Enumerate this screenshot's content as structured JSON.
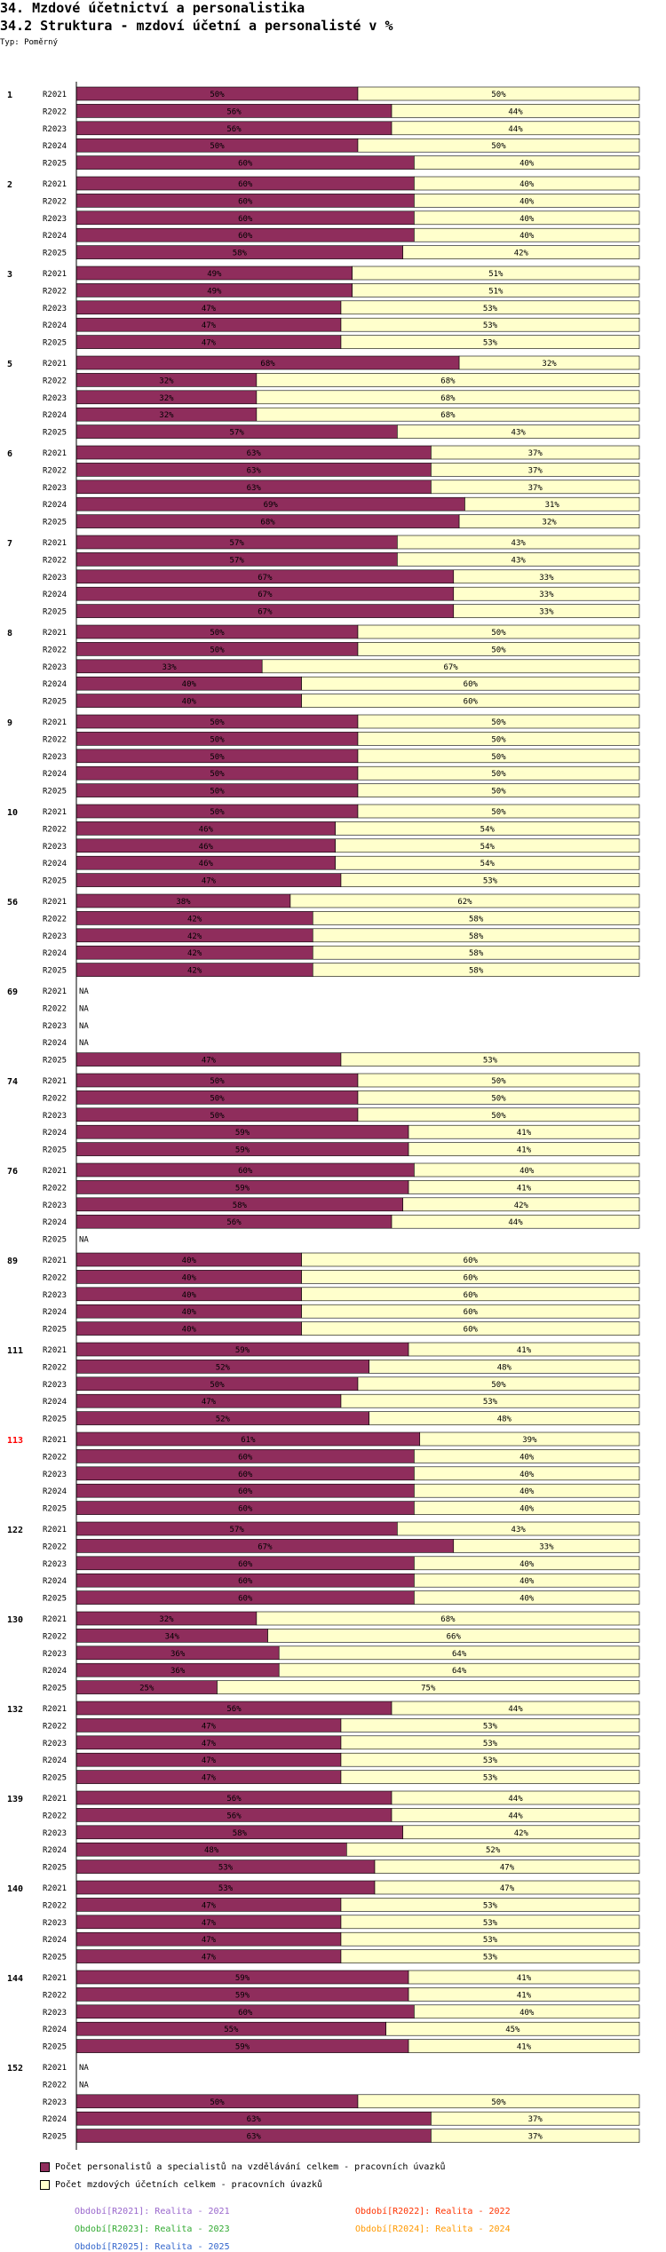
{
  "page": {
    "title": "34. Mzdové účetnictví a personalistika",
    "subtitle": "34.2 Struktura - mzdoví účetní a personalisté v %",
    "type_label": "Typ: Poměrný"
  },
  "colors": {
    "series1": "#8f2d5c",
    "series2": "#ffffcc",
    "highlight_group": "#ff0000"
  },
  "chart_data": {
    "type": "bar",
    "orientation": "horizontal",
    "stacked": true,
    "percent": true,
    "xlim": [
      0,
      100
    ],
    "highlight_group": "113",
    "period_labels": [
      "R2021",
      "R2022",
      "R2023",
      "R2024",
      "R2025"
    ],
    "series": [
      {
        "name": "Počet personalistů a specialistů na vzdělávání celkem - pracovních úvazků",
        "color": "#8f2d5c"
      },
      {
        "name": "Počet mzdových účetních celkem - pracovních úvazků",
        "color": "#ffffcc"
      }
    ],
    "groups": [
      {
        "label": "1",
        "values": [
          50,
          56,
          56,
          50,
          60
        ]
      },
      {
        "label": "2",
        "values": [
          60,
          60,
          60,
          60,
          58
        ]
      },
      {
        "label": "3",
        "values": [
          49,
          49,
          47,
          47,
          47
        ]
      },
      {
        "label": "5",
        "values": [
          68,
          32,
          32,
          32,
          57
        ]
      },
      {
        "label": "6",
        "values": [
          63,
          63,
          63,
          69,
          68
        ]
      },
      {
        "label": "7",
        "values": [
          57,
          57,
          67,
          67,
          67
        ]
      },
      {
        "label": "8",
        "values": [
          50,
          50,
          33,
          40,
          40
        ]
      },
      {
        "label": "9",
        "values": [
          50,
          50,
          50,
          50,
          50
        ]
      },
      {
        "label": "10",
        "values": [
          50,
          46,
          46,
          46,
          47
        ]
      },
      {
        "label": "56",
        "values": [
          38,
          42,
          42,
          42,
          42
        ]
      },
      {
        "label": "69",
        "values": [
          null,
          null,
          null,
          null,
          47
        ]
      },
      {
        "label": "74",
        "values": [
          50,
          50,
          50,
          59,
          59
        ]
      },
      {
        "label": "76",
        "values": [
          60,
          59,
          58,
          56,
          null
        ]
      },
      {
        "label": "89",
        "values": [
          40,
          40,
          40,
          40,
          40
        ]
      },
      {
        "label": "111",
        "values": [
          59,
          52,
          50,
          47,
          52
        ]
      },
      {
        "label": "113",
        "values": [
          61,
          60,
          60,
          60,
          60
        ]
      },
      {
        "label": "122",
        "values": [
          57,
          67,
          60,
          60,
          60
        ]
      },
      {
        "label": "130",
        "values": [
          32,
          34,
          36,
          36,
          25
        ]
      },
      {
        "label": "132",
        "values": [
          56,
          47,
          47,
          47,
          47
        ]
      },
      {
        "label": "139",
        "values": [
          56,
          56,
          58,
          48,
          53
        ]
      },
      {
        "label": "140",
        "values": [
          53,
          47,
          47,
          47,
          47
        ]
      },
      {
        "label": "144",
        "values": [
          59,
          59,
          60,
          55,
          59
        ]
      },
      {
        "label": "152",
        "values": [
          null,
          null,
          50,
          63,
          63
        ]
      }
    ],
    "na_label": "NA"
  },
  "legend": {
    "items": [
      "Počet personalistů a specialistů na vzdělávání celkem - pracovních úvazků",
      "Počet mzdových účetních celkem - pracovních úvazků"
    ],
    "periods": [
      {
        "text": "Období[R2021]: Realita - 2021",
        "color": "#9966cc"
      },
      {
        "text": "Období[R2022]: Realita - 2022",
        "color": "#ff3300"
      },
      {
        "text": "Období[R2023]: Realita - 2023",
        "color": "#33aa33"
      },
      {
        "text": "Období[R2024]: Realita - 2024",
        "color": "#ff9900"
      },
      {
        "text": "Období[R2025]: Realita - 2025",
        "color": "#3366cc"
      }
    ]
  }
}
